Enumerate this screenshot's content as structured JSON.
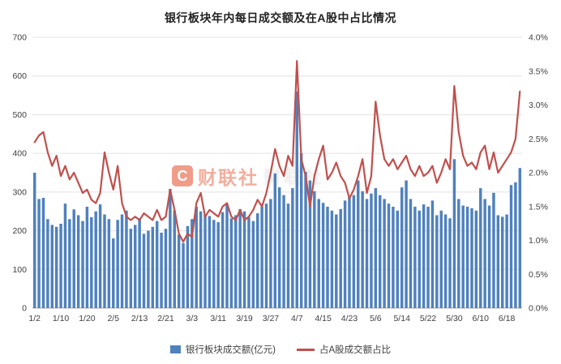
{
  "title": "银行板块年内每日成交额及在A股中占比情况",
  "watermark": {
    "logo": "C",
    "text": "财联社"
  },
  "legend": [
    {
      "label": "银行板块成交额(亿元)",
      "color": "#4f81bd",
      "type": "bar"
    },
    {
      "label": "占A股成交额占比",
      "color": "#c0504d",
      "type": "line"
    }
  ],
  "chart_data": {
    "type": "bar+line",
    "title": "银行板块年内每日成交额及在A股中占比情况",
    "x_labels": [
      "1/2",
      "1/10",
      "1/20",
      "2/5",
      "2/13",
      "2/21",
      "3/3",
      "3/11",
      "3/19",
      "3/27",
      "4/7",
      "4/15",
      "4/23",
      "5/6",
      "5/14",
      "5/22",
      "5/30",
      "6/10",
      "6/18"
    ],
    "label_every": 6,
    "left_axis": {
      "min": 0,
      "max": 700,
      "step": 100,
      "ticks": [
        "0",
        "100",
        "200",
        "300",
        "400",
        "500",
        "600",
        "700"
      ]
    },
    "right_axis": {
      "min": 0.0,
      "max": 4.0,
      "step": 0.5,
      "ticks": [
        "0.0%",
        "0.5%",
        "1.0%",
        "1.5%",
        "2.0%",
        "2.5%",
        "3.0%",
        "3.5%",
        "4.0%"
      ]
    },
    "grid": true,
    "legend_position": "bottom",
    "series": [
      {
        "name": "银行板块成交额(亿元)",
        "type": "bar",
        "axis": "left",
        "color": "#4f81bd",
        "values": [
          350,
          282,
          285,
          230,
          215,
          210,
          218,
          270,
          230,
          255,
          240,
          225,
          262,
          235,
          250,
          268,
          242,
          230,
          180,
          228,
          242,
          252,
          205,
          215,
          232,
          192,
          200,
          210,
          225,
          195,
          205,
          308,
          252,
          190,
          168,
          212,
          230,
          262,
          250,
          242,
          238,
          228,
          222,
          248,
          270,
          232,
          240,
          256,
          250,
          235,
          225,
          245,
          262,
          270,
          282,
          348,
          312,
          292,
          270,
          310,
          560,
          400,
          352,
          330,
          302,
          282,
          272,
          262,
          252,
          242,
          256,
          278,
          288,
          292,
          330,
          302,
          282,
          296,
          310,
          292,
          282,
          270,
          262,
          252,
          312,
          330,
          282,
          262,
          252,
          268,
          262,
          278,
          240,
          252,
          242,
          232,
          385,
          282,
          265,
          262,
          258,
          252,
          310,
          282,
          265,
          298,
          240,
          236,
          242,
          318,
          325,
          362
        ]
      },
      {
        "name": "占A股成交额占比",
        "type": "line",
        "axis": "right",
        "color": "#c0504d",
        "unit": "%",
        "values": [
          2.45,
          2.55,
          2.6,
          2.3,
          2.1,
          2.25,
          1.95,
          2.1,
          1.9,
          2.0,
          1.85,
          1.7,
          1.75,
          1.6,
          1.55,
          1.7,
          2.3,
          2.0,
          1.75,
          2.1,
          1.55,
          1.35,
          1.3,
          1.35,
          1.3,
          1.4,
          1.35,
          1.3,
          1.45,
          1.3,
          1.35,
          1.75,
          1.45,
          1.1,
          0.98,
          1.1,
          1.05,
          1.55,
          1.7,
          1.35,
          1.45,
          1.4,
          1.35,
          1.5,
          1.55,
          1.35,
          1.3,
          1.45,
          1.3,
          1.35,
          1.45,
          1.6,
          1.5,
          1.7,
          2.0,
          2.35,
          2.1,
          1.95,
          2.25,
          2.1,
          3.65,
          2.2,
          1.95,
          1.5,
          1.95,
          2.2,
          2.4,
          1.9,
          2.0,
          2.15,
          1.95,
          1.85,
          1.62,
          1.75,
          1.95,
          2.2,
          1.7,
          1.95,
          3.05,
          2.55,
          2.2,
          2.1,
          2.2,
          2.05,
          2.15,
          2.25,
          2.05,
          1.95,
          2.1,
          1.95,
          2.0,
          2.1,
          1.85,
          2.0,
          2.2,
          2.05,
          3.28,
          2.6,
          2.25,
          2.1,
          2.15,
          2.05,
          2.3,
          2.4,
          2.05,
          2.3,
          2.0,
          2.1,
          2.2,
          2.3,
          2.5,
          3.2
        ]
      }
    ]
  }
}
